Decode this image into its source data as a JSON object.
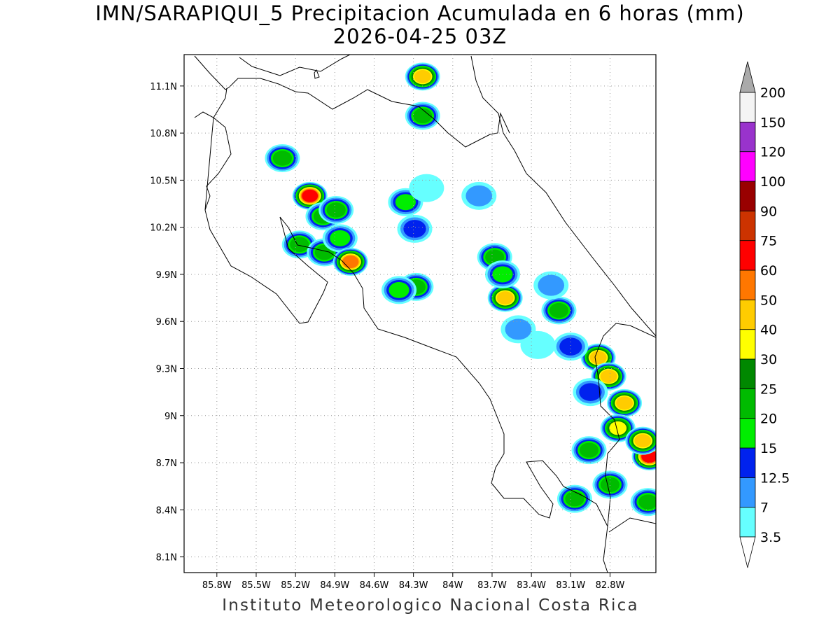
{
  "title": {
    "line1": "IMN/SARAPIQUI_5 Precipitacion Acumulada en 6 horas (mm)",
    "line2": "2026-04-25 03Z"
  },
  "credit": "Instituto Meteorologico Nacional Costa Rica",
  "map": {
    "lon_range": [
      -86.05,
      -82.45
    ],
    "lat_range": [
      8.0,
      11.3
    ],
    "lon_ticks": [
      "85.8W",
      "85.5W",
      "85.2W",
      "84.9W",
      "84.6W",
      "84.3W",
      "84W",
      "83.7W",
      "83.4W",
      "83.1W",
      "82.8W"
    ],
    "lon_values": [
      -85.8,
      -85.5,
      -85.2,
      -84.9,
      -84.6,
      -84.3,
      -84.0,
      -83.7,
      -83.4,
      -83.1,
      -82.8
    ],
    "lat_ticks": [
      "8.1N",
      "8.4N",
      "8.7N",
      "9N",
      "9.3N",
      "9.6N",
      "9.9N",
      "10.2N",
      "10.5N",
      "10.8N",
      "11.1N"
    ],
    "lat_values": [
      8.1,
      8.4,
      8.7,
      9.0,
      9.3,
      9.6,
      9.9,
      10.2,
      10.5,
      10.8,
      11.1
    ],
    "grid": true
  },
  "colorbar": {
    "levels": [
      "3.5",
      "7",
      "12.5",
      "15",
      "20",
      "25",
      "30",
      "40",
      "50",
      "60",
      "75",
      "90",
      "100",
      "120",
      "150",
      "200"
    ],
    "colors": [
      "#66ffff",
      "#3399ff",
      "#0022ee",
      "#00ee00",
      "#00bb00",
      "#008800",
      "#ffff00",
      "#ffcc00",
      "#ff7700",
      "#ff0000",
      "#cc3300",
      "#990000",
      "#ff00ff",
      "#9933cc",
      "#f4f4f4",
      "#aaaaaa"
    ]
  },
  "cells": [
    {
      "lon": -84.23,
      "lat": 11.16,
      "max": 40
    },
    {
      "lon": -84.23,
      "lat": 10.91,
      "max": 20
    },
    {
      "lon": -85.3,
      "lat": 10.64,
      "max": 20
    },
    {
      "lon": -85.09,
      "lat": 10.4,
      "max": 60
    },
    {
      "lon": -84.99,
      "lat": 10.27,
      "max": 20
    },
    {
      "lon": -84.89,
      "lat": 10.31,
      "max": 20
    },
    {
      "lon": -85.17,
      "lat": 10.09,
      "max": 20
    },
    {
      "lon": -84.98,
      "lat": 10.04,
      "max": 20
    },
    {
      "lon": -84.86,
      "lat": 10.13,
      "max": 15
    },
    {
      "lon": -84.78,
      "lat": 9.98,
      "max": 50
    },
    {
      "lon": -84.36,
      "lat": 10.36,
      "max": 15
    },
    {
      "lon": -84.29,
      "lat": 10.19,
      "max": 12.5
    },
    {
      "lon": -84.28,
      "lat": 9.82,
      "max": 20
    },
    {
      "lon": -84.41,
      "lat": 9.8,
      "max": 15
    },
    {
      "lon": -83.68,
      "lat": 10.01,
      "max": 20
    },
    {
      "lon": -83.6,
      "lat": 9.75,
      "max": 40
    },
    {
      "lon": -83.62,
      "lat": 9.9,
      "max": 15
    },
    {
      "lon": -83.19,
      "lat": 9.67,
      "max": 20
    },
    {
      "lon": -83.25,
      "lat": 9.83,
      "max": 7
    },
    {
      "lon": -82.89,
      "lat": 9.37,
      "max": 40
    },
    {
      "lon": -82.81,
      "lat": 9.25,
      "max": 40
    },
    {
      "lon": -82.69,
      "lat": 9.08,
      "max": 40
    },
    {
      "lon": -82.74,
      "lat": 8.92,
      "max": 30
    },
    {
      "lon": -82.5,
      "lat": 8.74,
      "max": 60
    },
    {
      "lon": -82.55,
      "lat": 8.84,
      "max": 40
    },
    {
      "lon": -82.96,
      "lat": 8.78,
      "max": 20
    },
    {
      "lon": -82.8,
      "lat": 8.56,
      "max": 20
    },
    {
      "lon": -83.07,
      "lat": 8.47,
      "max": 20
    },
    {
      "lon": -82.51,
      "lat": 8.45,
      "max": 20
    },
    {
      "lon": -82.95,
      "lat": 9.15,
      "max": 12.5
    },
    {
      "lon": -83.1,
      "lat": 9.44,
      "max": 12.5
    },
    {
      "lon": -83.35,
      "lat": 9.45,
      "max": 3.5
    },
    {
      "lon": -83.8,
      "lat": 10.4,
      "max": 7
    },
    {
      "lon": -84.2,
      "lat": 10.45,
      "max": 3.5
    },
    {
      "lon": -83.5,
      "lat": 9.55,
      "max": 7
    }
  ]
}
